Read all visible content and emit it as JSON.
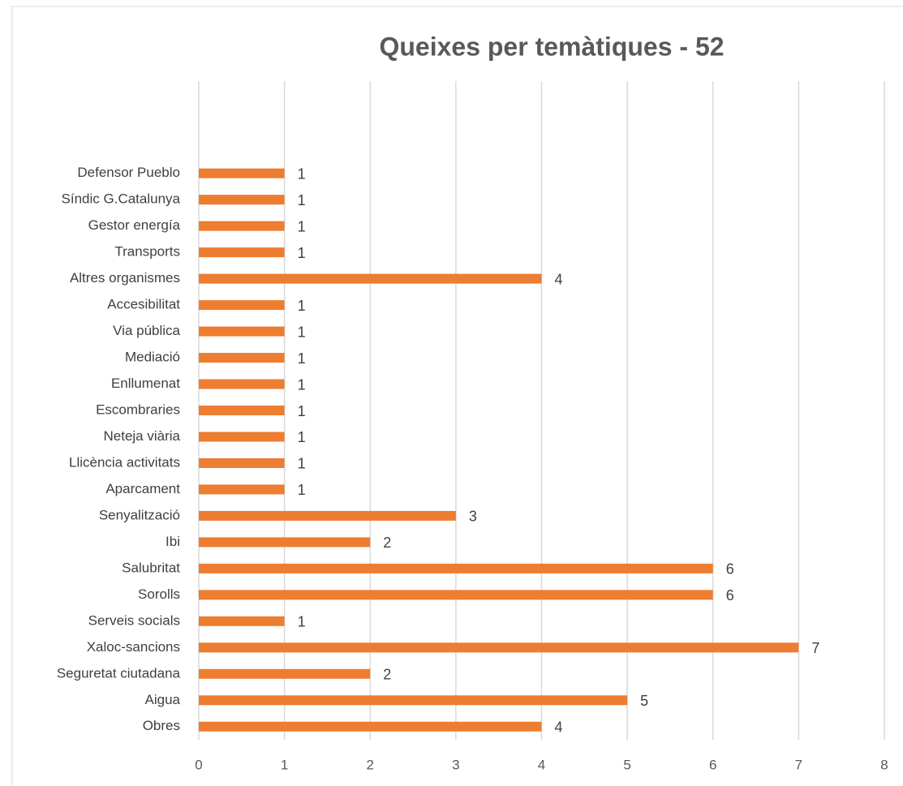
{
  "chart_data": {
    "type": "barh",
    "title": "Queixes per temàtiques  -  52",
    "categories": [
      "Obres",
      "Aigua",
      "Seguretat ciutadana",
      "Xaloc-sancions",
      "Serveis socials",
      "Sorolls",
      "Salubritat",
      "Ibi",
      "Senyalització",
      "Aparcament",
      "Llicència activitats",
      "Neteja viària",
      "Escombraries",
      "Enllumenat",
      "Mediació",
      "Via pública",
      "Accesibilitat",
      "Altres organismes",
      "Transports",
      "Gestor energía",
      "Síndic G.Catalunya",
      "Defensor Pueblo"
    ],
    "values": [
      4,
      5,
      2,
      7,
      1,
      6,
      6,
      2,
      3,
      1,
      1,
      1,
      1,
      1,
      1,
      1,
      1,
      4,
      1,
      1,
      1,
      1
    ],
    "color": "#ed7d31",
    "xlim": [
      0,
      8
    ],
    "xticks": [
      0,
      1,
      2,
      3,
      4,
      5,
      6,
      7,
      8
    ],
    "grid": true
  }
}
